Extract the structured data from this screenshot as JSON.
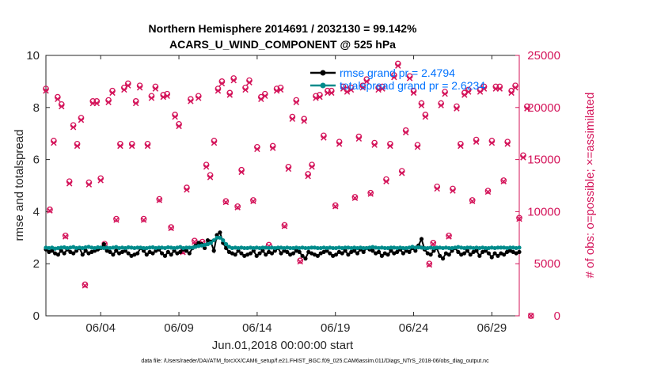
{
  "chart_data": {
    "type": "line",
    "title_line1": "Northern Hemisphere 2014691 / 2032130 = 99.142%",
    "title_line2": "ACARS_U_WIND_COMPONENT @ 525 hPa",
    "ylabel": "rmse and totalspread",
    "ylabel_right": "# of obs: o=possible; ×=assimilated",
    "xlabel": "Jun.01,2018 00:00:00 start",
    "footnote": "data file: /Users/raeder/DAI/ATM_forcXX/CAM6_setup/f.e21.FHIST_BGC.f09_025.CAM6assim.011/Diags_NTrS_2018-06/obs_diag_output.nc",
    "xlim": [
      0.5,
      30.75
    ],
    "ylim": [
      0,
      10
    ],
    "ylim_right": [
      0,
      25000
    ],
    "x_ticks": [
      {
        "v": 4,
        "label": "06/04"
      },
      {
        "v": 9,
        "label": "06/09"
      },
      {
        "v": 14,
        "label": "06/14"
      },
      {
        "v": 19,
        "label": "06/19"
      },
      {
        "v": 24,
        "label": "06/24"
      },
      {
        "v": 29,
        "label": "06/29"
      }
    ],
    "y_ticks": [
      "0",
      "2",
      "4",
      "6",
      "8",
      "10"
    ],
    "y_ticks_right": [
      "0",
      "5000",
      "10000",
      "15000",
      "20000",
      "25000"
    ],
    "colors": {
      "rmse": "#000000",
      "spread": "#008b8b",
      "obs": "#d4145a",
      "legend_text": "#0072ff"
    },
    "series": [
      {
        "name": "rmse",
        "legend": "rmse grand pr = 2.4794",
        "values": [
          2.55,
          2.45,
          2.5,
          2.4,
          2.35,
          2.5,
          2.4,
          2.55,
          2.45,
          2.4,
          2.5,
          2.6,
          2.35,
          2.5,
          2.4,
          2.45,
          2.5,
          2.55,
          2.6,
          2.75,
          2.5,
          2.45,
          2.35,
          2.5,
          2.4,
          2.45,
          2.5,
          2.4,
          2.3,
          2.35,
          2.4,
          2.6,
          2.5,
          2.35,
          2.45,
          2.4,
          2.5,
          2.55,
          2.4,
          2.3,
          2.45,
          2.35,
          2.5,
          2.4,
          2.45,
          2.55,
          2.5,
          2.4,
          2.6,
          2.7,
          2.8,
          2.75,
          2.6,
          2.9,
          2.85,
          2.5,
          3.1,
          3.2,
          2.8,
          2.6,
          2.45,
          2.4,
          2.35,
          2.5,
          2.4,
          2.3,
          2.35,
          2.4,
          2.5,
          2.3,
          2.4,
          2.5,
          2.35,
          2.45,
          2.4,
          2.5,
          2.6,
          2.4,
          2.5,
          2.45,
          2.35,
          2.4,
          2.5,
          2.45,
          2.3,
          2.2,
          2.45,
          2.4,
          2.35,
          2.3,
          2.4,
          2.45,
          2.5,
          2.4,
          2.3,
          2.35,
          2.45,
          2.4,
          2.5,
          2.35,
          2.45,
          2.5,
          2.4,
          2.55,
          2.45,
          2.6,
          2.55,
          2.5,
          2.4,
          2.45,
          2.3,
          2.4,
          2.35,
          2.5,
          2.4,
          2.45,
          2.55,
          2.4,
          2.5,
          2.45,
          2.6,
          2.5,
          2.7,
          2.95,
          2.55,
          2.4,
          2.35,
          2.5,
          2.6,
          2.3,
          2.2,
          2.4,
          2.35,
          2.5,
          2.6,
          2.45,
          2.35,
          2.4,
          2.5,
          2.35,
          2.45,
          2.5,
          2.3,
          2.45,
          2.5,
          2.4,
          2.25,
          2.4,
          2.3,
          2.4,
          2.35,
          2.45,
          2.5,
          2.45,
          2.4,
          2.45
        ]
      },
      {
        "name": "totalspread",
        "legend": "totalspread grand pr = 2.6234",
        "values": [
          2.62,
          2.6,
          2.62,
          2.58,
          2.6,
          2.62,
          2.63,
          2.6,
          2.62,
          2.64,
          2.6,
          2.62,
          2.6,
          2.63,
          2.65,
          2.62,
          2.6,
          2.63,
          2.62,
          2.6,
          2.62,
          2.6,
          2.62,
          2.64,
          2.6,
          2.62,
          2.6,
          2.63,
          2.62,
          2.6,
          2.62,
          2.62,
          2.6,
          2.6,
          2.62,
          2.63,
          2.6,
          2.62,
          2.62,
          2.6,
          2.63,
          2.62,
          2.6,
          2.62,
          2.64,
          2.6,
          2.62,
          2.62,
          2.62,
          2.65,
          2.68,
          2.7,
          2.72,
          2.75,
          2.8,
          2.9,
          3.0,
          3.0,
          2.9,
          2.75,
          2.65,
          2.6,
          2.62,
          2.6,
          2.62,
          2.6,
          2.6,
          2.62,
          2.6,
          2.62,
          2.6,
          2.62,
          2.62,
          2.6,
          2.62,
          2.6,
          2.62,
          2.62,
          2.6,
          2.62,
          2.6,
          2.6,
          2.62,
          2.6,
          2.62,
          2.6,
          2.6,
          2.62,
          2.62,
          2.6,
          2.6,
          2.62,
          2.6,
          2.62,
          2.6,
          2.6,
          2.62,
          2.6,
          2.62,
          2.62,
          2.6,
          2.62,
          2.6,
          2.62,
          2.6,
          2.6,
          2.62,
          2.64,
          2.62,
          2.6,
          2.62,
          2.6,
          2.6,
          2.62,
          2.62,
          2.6,
          2.62,
          2.6,
          2.6,
          2.62,
          2.65,
          2.62,
          2.63,
          2.62,
          2.6,
          2.6,
          2.62,
          2.6,
          2.62,
          2.62,
          2.6,
          2.62,
          2.6,
          2.6,
          2.62,
          2.64,
          2.62,
          2.6,
          2.62,
          2.62,
          2.6,
          2.62,
          2.6,
          2.62,
          2.6,
          2.6,
          2.62,
          2.6,
          2.62,
          2.62,
          2.62,
          2.6,
          2.62,
          2.62,
          2.6,
          2.62
        ]
      },
      {
        "name": "obs_possible",
        "legend": "o=possible",
        "values": [
          21800,
          10200,
          16800,
          21000,
          20300,
          7700,
          12900,
          18300,
          16500,
          19000,
          3000,
          12800,
          20600,
          20600,
          13200,
          6900,
          20700,
          21600,
          9300,
          16500,
          21900,
          22300,
          16500,
          20600,
          22100,
          9300,
          16500,
          21100,
          22000,
          11200,
          21200,
          21300,
          8500,
          19300,
          18400,
          6200,
          12300,
          20800,
          7200,
          21100,
          7100,
          14500,
          13500,
          16800,
          21800,
          22500,
          11000,
          21400,
          22800,
          10500,
          14000,
          21900,
          22600,
          11100,
          16200,
          21000,
          21300,
          6800,
          16300,
          21800,
          21900,
          8700,
          14300,
          19100,
          20700,
          5300,
          18900,
          13600,
          14500,
          21100,
          21200,
          17300,
          21600,
          21600,
          10600,
          16700,
          22000,
          21700,
          21900,
          11400,
          17200,
          22100,
          22700,
          11800,
          16600,
          21900,
          22000,
          13100,
          16500,
          23100,
          24200,
          13900,
          17800,
          23000,
          21600,
          16400,
          20400,
          19300,
          5000,
          7000,
          12400,
          20400,
          21500,
          7700,
          12200,
          20100,
          16500,
          21400,
          21700,
          11100,
          16900,
          21700,
          22000,
          12000,
          16800,
          22000,
          22000,
          13000,
          16700,
          21600,
          22100,
          9400,
          15400,
          20100,
          0
        ]
      },
      {
        "name": "obs_assimilated",
        "legend": "×=assimilated",
        "values": [
          21600,
          10100,
          16600,
          20800,
          20100,
          7600,
          12700,
          18100,
          16300,
          18800,
          2900,
          12600,
          20400,
          20400,
          13000,
          6800,
          20500,
          21400,
          9200,
          16300,
          21700,
          22100,
          16300,
          20400,
          21900,
          9200,
          16300,
          20900,
          21800,
          11100,
          21000,
          21100,
          8400,
          19100,
          18200,
          6100,
          12100,
          20600,
          7100,
          20900,
          7000,
          14300,
          13300,
          16600,
          21600,
          22300,
          10900,
          21200,
          22600,
          10400,
          13800,
          21700,
          22400,
          11000,
          16000,
          20800,
          21100,
          6700,
          16100,
          21600,
          21700,
          8600,
          14100,
          18900,
          20500,
          5200,
          18700,
          13400,
          14300,
          20900,
          21000,
          17100,
          21400,
          21400,
          10500,
          16500,
          21800,
          21500,
          21700,
          11300,
          17000,
          21900,
          22500,
          11700,
          16400,
          21700,
          21800,
          12900,
          16300,
          22900,
          24000,
          13700,
          17600,
          22800,
          21400,
          16200,
          20200,
          19100,
          4900,
          6900,
          12200,
          20200,
          21300,
          7600,
          12000,
          19900,
          16300,
          21200,
          21500,
          11000,
          16700,
          21500,
          21800,
          11900,
          16600,
          21800,
          21800,
          12900,
          16500,
          21400,
          21900,
          9300,
          15200,
          19900,
          0
        ]
      }
    ]
  }
}
